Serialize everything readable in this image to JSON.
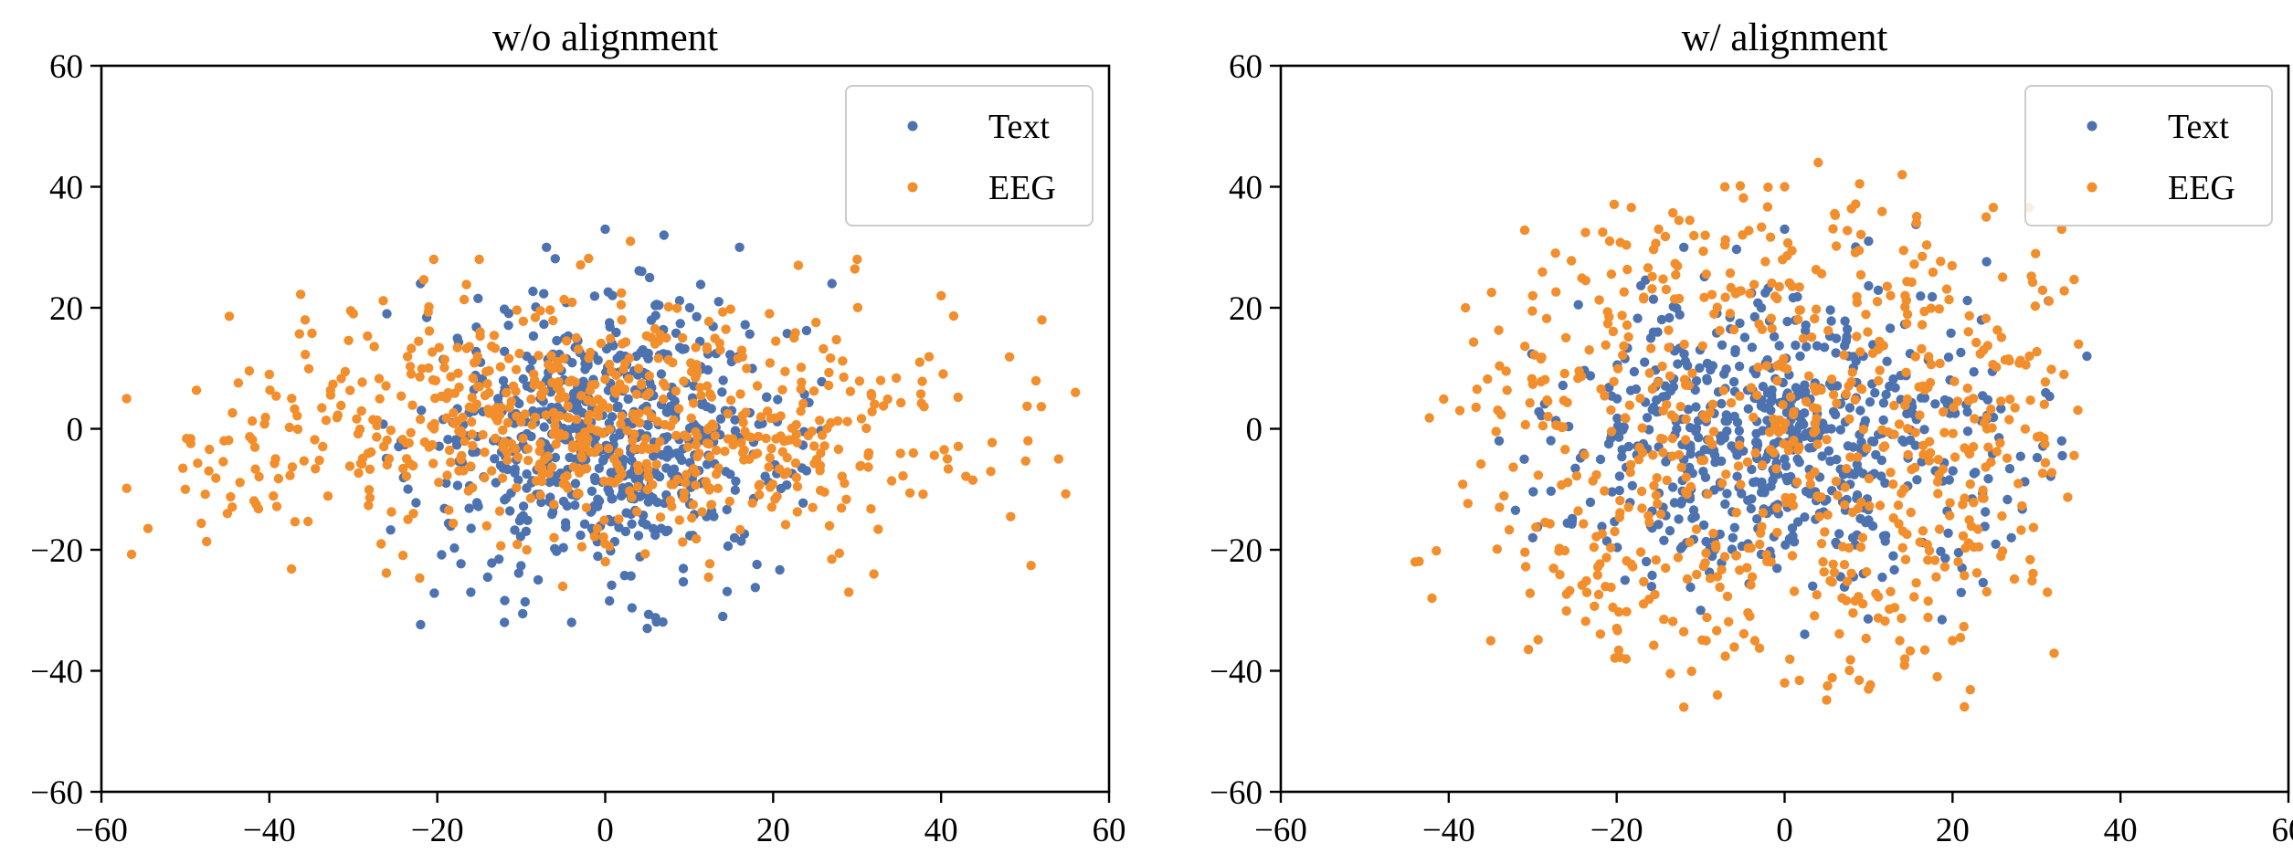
{
  "chart_data": [
    {
      "type": "scatter",
      "title": "w/o alignment",
      "xlabel": "",
      "ylabel": "",
      "xlim": [
        -60,
        60
      ],
      "ylim": [
        -60,
        60
      ],
      "xticks": [
        -60,
        -40,
        -20,
        0,
        20,
        40,
        60
      ],
      "yticks": [
        -60,
        -40,
        -20,
        0,
        20,
        40,
        60
      ],
      "grid": false,
      "legend_position": "top-right",
      "series": [
        {
          "name": "Text",
          "color": "#4c72b0",
          "distribution": {
            "center": [
              0,
              -2
            ],
            "spread": [
              11,
              11
            ],
            "x_range": [
              -27,
              28
            ],
            "y_range": [
              -33,
              34
            ]
          },
          "sample_points": [
            [
              -22,
              24
            ],
            [
              -7,
              30
            ],
            [
              0,
              33
            ],
            [
              7,
              32
            ],
            [
              16,
              30
            ],
            [
              -16,
              -27
            ],
            [
              -12,
              -32
            ],
            [
              -4,
              -32
            ],
            [
              5,
              -33
            ],
            [
              14,
              -31
            ],
            [
              -26,
              19
            ],
            [
              27,
              24
            ],
            [
              -5,
              0
            ],
            [
              2,
              -5
            ],
            [
              10,
              -2
            ]
          ]
        },
        {
          "name": "EEG",
          "color": "#f28e2b",
          "distribution": {
            "center": [
              -2,
              0
            ],
            "spread": [
              25,
              10
            ],
            "x_range": [
              -61,
              56
            ],
            "y_range": [
              -27,
              31
            ]
          },
          "sample_points": [
            [
              -61,
              0
            ],
            [
              -57,
              5
            ],
            [
              -50,
              -10
            ],
            [
              -45,
              -14
            ],
            [
              -40,
              9
            ],
            [
              -30,
              19
            ],
            [
              -15,
              28
            ],
            [
              3,
              31
            ],
            [
              23,
              27
            ],
            [
              30,
              28
            ],
            [
              40,
              22
            ],
            [
              52,
              18
            ],
            [
              56,
              6
            ],
            [
              54,
              -5
            ],
            [
              29,
              -27
            ],
            [
              32,
              -24
            ]
          ]
        }
      ]
    },
    {
      "type": "scatter",
      "title": "w/ alignment",
      "xlabel": "",
      "ylabel": "",
      "xlim": [
        -60,
        60
      ],
      "ylim": [
        -60,
        60
      ],
      "xticks": [
        -60,
        -40,
        -20,
        0,
        20,
        40,
        60
      ],
      "yticks": [
        -60,
        -40,
        -20,
        0,
        20,
        40,
        60
      ],
      "grid": false,
      "legend_position": "top-right",
      "series": [
        {
          "name": "Text",
          "color": "#4c72b0",
          "distribution": {
            "center": [
              0,
              -2
            ],
            "spread": [
              13,
              12
            ],
            "x_range": [
              -34,
              36
            ],
            "y_range": [
              -34,
              34
            ]
          },
          "sample_points": [
            [
              -12,
              30
            ],
            [
              0,
              33
            ],
            [
              10,
              31
            ],
            [
              36,
              12
            ],
            [
              33,
              -2
            ],
            [
              27,
              -18
            ],
            [
              -34,
              -2
            ],
            [
              -30,
              -18
            ],
            [
              -10,
              -30
            ],
            [
              0,
              -5
            ],
            [
              5,
              0
            ],
            [
              -15,
              -3
            ]
          ]
        },
        {
          "name": "EEG",
          "color": "#f28e2b",
          "distribution": {
            "center": [
              0,
              0
            ],
            "spread": [
              19,
              20
            ],
            "x_range": [
              -44,
              35
            ],
            "y_range": [
              -48,
              44
            ]
          },
          "sample_points": [
            [
              -44,
              -22
            ],
            [
              -42,
              -28
            ],
            [
              -35,
              -35
            ],
            [
              -38,
              20
            ],
            [
              -30,
              22
            ],
            [
              -15,
              33
            ],
            [
              0,
              40
            ],
            [
              4,
              44
            ],
            [
              14,
              42
            ],
            [
              24,
              35
            ],
            [
              33,
              33
            ],
            [
              35,
              14
            ],
            [
              -12,
              -46
            ],
            [
              -8,
              -44
            ],
            [
              0,
              -42
            ],
            [
              10,
              -43
            ],
            [
              20,
              -35
            ],
            [
              -20,
              -33
            ]
          ]
        }
      ]
    }
  ]
}
